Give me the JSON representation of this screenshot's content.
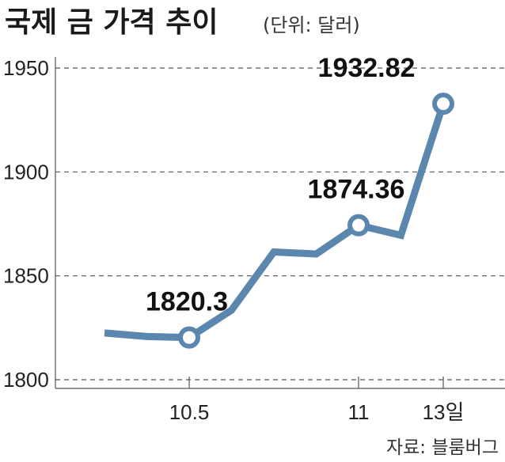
{
  "header": {
    "title": "국제 금 가격 추이",
    "unit": "(단위: 달러)"
  },
  "source": "자료: 블룸버그",
  "colors": {
    "line": "#5b86ad",
    "grid": "#555555",
    "marker_fill": "#ffffff"
  },
  "chart_data": {
    "type": "line",
    "title": "국제 금 가격 추이",
    "xlabel": "",
    "ylabel": "",
    "ylim": [
      1800,
      1950
    ],
    "yticks": [
      1950,
      1900,
      1850,
      1800
    ],
    "grid": true,
    "x_tick_labels": [
      {
        "index": 2,
        "label": "10.5"
      },
      {
        "index": 6,
        "label": "11"
      },
      {
        "index": 8,
        "label": "13일"
      }
    ],
    "series": [
      {
        "values": [
          1822.5,
          1820.8,
          1820.3,
          1833.5,
          1861.5,
          1860.5,
          1874.36,
          1869.5,
          1932.82
        ],
        "labeled_points": [
          {
            "index": 2,
            "label": "1820.3"
          },
          {
            "index": 6,
            "label": "1874.36"
          },
          {
            "index": 8,
            "label": "1932.82"
          }
        ]
      }
    ]
  }
}
